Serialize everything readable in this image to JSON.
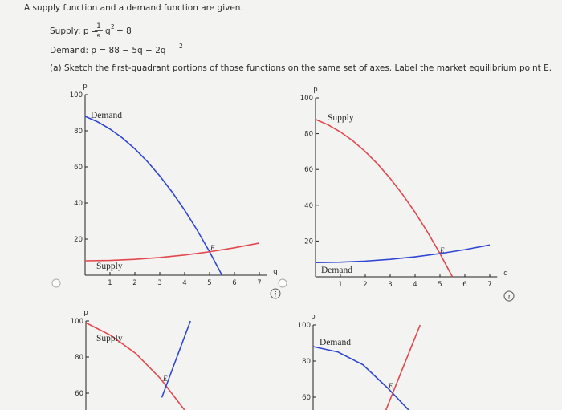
{
  "question": {
    "intro": "A supply function and a demand function are given.",
    "supply": {
      "lhs": "Supply: p =",
      "num": "1",
      "den": "5",
      "var": "q",
      "exp": "2",
      "rest": "+ 8"
    },
    "demand": {
      "text": "Demand: p = 88 − 5q − 2q",
      "exp": "2"
    },
    "part_a": "(a) Sketch the first-quadrant portions of those functions on the same set of axes. Label the market equilibrium point E."
  },
  "charts": [
    {
      "type": "line",
      "ylabel": "p",
      "xlabel": "q",
      "xlim": [
        0,
        7.3
      ],
      "ylim": [
        0,
        100
      ],
      "xticks": [
        1,
        2,
        3,
        4,
        5,
        6,
        7
      ],
      "yticks": [
        20,
        40,
        60,
        80,
        100
      ],
      "equilibrium_label": "E",
      "info_icon": "i",
      "series": [
        {
          "name": "Demand",
          "color": "#3046d4",
          "x": [
            0,
            0.5,
            1,
            1.5,
            2,
            2.5,
            3,
            3.5,
            4,
            4.5,
            5,
            5.5
          ],
          "values": [
            88,
            85,
            81,
            76,
            70,
            63,
            55,
            46,
            36,
            25,
            13,
            0
          ]
        },
        {
          "name": "Supply",
          "color": "#e2474e",
          "x": [
            0,
            1,
            2,
            3,
            4,
            5,
            6,
            7
          ],
          "values": [
            8,
            8.2,
            8.8,
            9.8,
            11.2,
            13,
            15.2,
            17.8
          ]
        }
      ]
    },
    {
      "type": "line",
      "ylabel": "p",
      "xlabel": "q",
      "xlim": [
        0,
        7.3
      ],
      "ylim": [
        0,
        100
      ],
      "xticks": [
        1,
        2,
        3,
        4,
        5,
        6,
        7
      ],
      "yticks": [
        20,
        40,
        60,
        80,
        100
      ],
      "equilibrium_label": "E",
      "info_icon": "i",
      "series": [
        {
          "name": "Supply",
          "color": "#e2474e",
          "x": [
            0,
            0.5,
            1,
            1.5,
            2,
            2.5,
            3,
            3.5,
            4,
            4.5,
            5,
            5.5
          ],
          "values": [
            88,
            85,
            81,
            76,
            70,
            63,
            55,
            46,
            36,
            25,
            13,
            0
          ]
        },
        {
          "name": "Demand",
          "color": "#3046d4",
          "x": [
            0,
            1,
            2,
            3,
            4,
            5,
            6,
            7
          ],
          "values": [
            8,
            8.2,
            8.8,
            9.8,
            11.2,
            13,
            15.2,
            17.8
          ]
        }
      ]
    },
    {
      "type": "line",
      "ylabel": "p",
      "xlim": [
        0,
        7.3
      ],
      "ylim": [
        0,
        100
      ],
      "yticks": [
        60,
        80,
        100
      ],
      "equilibrium_label": "E",
      "series": [
        {
          "name": "Supply",
          "color": "#e2474e",
          "x": [
            0,
            1,
            2,
            3,
            4
          ],
          "values": [
            99,
            92,
            82,
            68,
            50
          ]
        },
        {
          "name": "Demand",
          "color": "#3046d4",
          "x": [
            3.05,
            4.2
          ],
          "values": [
            57.6,
            100
          ]
        }
      ]
    },
    {
      "type": "line",
      "ylabel": "p",
      "xlim": [
        0,
        7.3
      ],
      "ylim": [
        0,
        100
      ],
      "yticks": [
        60,
        80,
        100
      ],
      "equilibrium_label": "E",
      "series": [
        {
          "name": "Demand",
          "color": "#3046d4",
          "x": [
            0,
            1,
            2,
            3,
            3.9
          ],
          "values": [
            88,
            85,
            78,
            65,
            52
          ]
        },
        {
          "name": "Supply",
          "color": "#e2474e",
          "x": [
            2.9,
            4.3
          ],
          "values": [
            52,
            100
          ]
        }
      ]
    }
  ]
}
